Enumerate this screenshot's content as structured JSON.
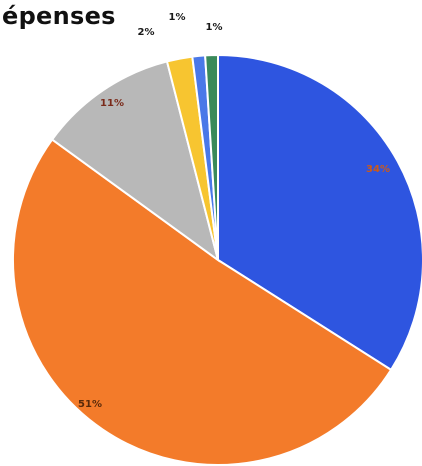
{
  "chart_data": {
    "type": "pie",
    "title": "épenses",
    "slices": [
      {
        "label": "34%",
        "value": 34,
        "color": "#2e55e0",
        "label_color": "#cc5a1a"
      },
      {
        "label": "51%",
        "value": 51,
        "color": "#f37b2a",
        "label_color": "#5a2a0a"
      },
      {
        "label": "11%",
        "value": 11,
        "color": "#b8b8b8",
        "label_color": "#7a2a1a"
      },
      {
        "label": "2%",
        "value": 2,
        "color": "#f7c530",
        "label_color": "#1a1a1a"
      },
      {
        "label": "1%",
        "value": 1,
        "color": "#4a78e8",
        "label_color": "#1a1a1a"
      },
      {
        "label": "1%",
        "value": 1,
        "color": "#3a8a5a",
        "label_color": "#1a1a1a"
      }
    ]
  }
}
